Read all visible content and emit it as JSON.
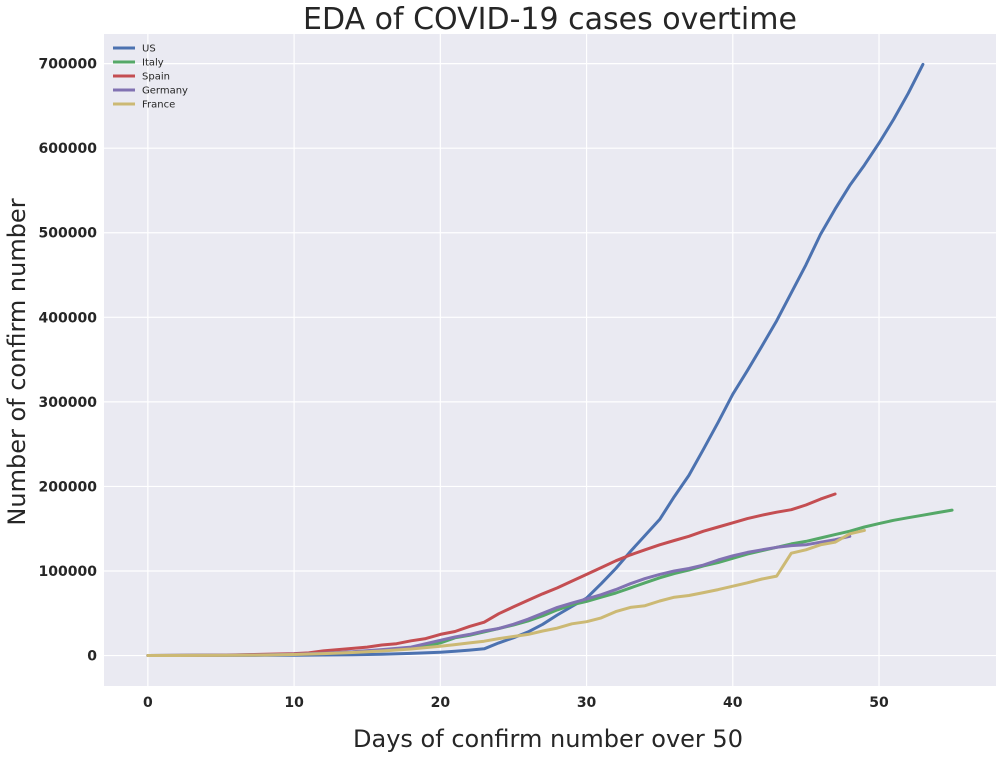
{
  "chart_data": {
    "type": "line",
    "title": "EDA of COVID-19 cases overtime",
    "xlabel": "Days of confirm number over 50",
    "ylabel": "Number of confirm number",
    "xlim": [
      -3,
      58
    ],
    "ylim": [
      -36000,
      735000
    ],
    "xticks": [
      0,
      10,
      20,
      30,
      40,
      50
    ],
    "yticks": [
      0,
      100000,
      200000,
      300000,
      400000,
      500000,
      600000,
      700000
    ],
    "grid": true,
    "legend_position": "top-left",
    "colors": {
      "plot_background": "#eaeaf2",
      "grid": "#ffffff",
      "text": "#262626"
    },
    "series": [
      {
        "name": "US",
        "color": "#4c72b0",
        "x": [
          0,
          2,
          4,
          6,
          8,
          10,
          12,
          14,
          16,
          18,
          20,
          21,
          22,
          23,
          24,
          25,
          26,
          27,
          28,
          29,
          30,
          31,
          32,
          33,
          34,
          35,
          36,
          37,
          38,
          39,
          40,
          41,
          42,
          43,
          44,
          45,
          46,
          47,
          48,
          49,
          50,
          51,
          52,
          53
        ],
        "values": [
          50,
          100,
          150,
          200,
          300,
          400,
          700,
          1000,
          1500,
          2500,
          4000,
          5000,
          6500,
          8000,
          15000,
          21000,
          28000,
          37000,
          48000,
          58000,
          68000,
          85000,
          103000,
          123000,
          142000,
          161000,
          188000,
          213000,
          244000,
          276000,
          309000,
          337000,
          366000,
          396000,
          429000,
          462000,
          498000,
          528000,
          556000,
          580000,
          606000,
          634000,
          665000,
          699000
        ]
      },
      {
        "name": "Italy",
        "color": "#55a868",
        "x": [
          0,
          2,
          4,
          6,
          8,
          10,
          12,
          14,
          16,
          18,
          19,
          20,
          21,
          22,
          23,
          24,
          25,
          26,
          27,
          28,
          29,
          30,
          31,
          32,
          33,
          34,
          35,
          36,
          37,
          38,
          39,
          40,
          41,
          42,
          43,
          44,
          45,
          46,
          47,
          48,
          49,
          50,
          51,
          52,
          53,
          54,
          55
        ],
        "values": [
          50,
          150,
          300,
          600,
          1000,
          1700,
          2500,
          4000,
          6000,
          9000,
          11000,
          15000,
          21000,
          24000,
          28000,
          32000,
          36000,
          41000,
          47000,
          54000,
          60000,
          64000,
          69000,
          74000,
          80000,
          86000,
          92000,
          97000,
          101000,
          106000,
          110000,
          115000,
          120000,
          124000,
          128000,
          132000,
          135000,
          139000,
          143000,
          147000,
          152000,
          156000,
          160000,
          163000,
          166000,
          169000,
          172000
        ]
      },
      {
        "name": "Spain",
        "color": "#c44e52",
        "x": [
          0,
          2,
          4,
          6,
          8,
          10,
          11,
          12,
          13,
          14,
          15,
          16,
          17,
          18,
          19,
          20,
          21,
          22,
          23,
          24,
          25,
          26,
          27,
          28,
          29,
          30,
          31,
          32,
          33,
          34,
          35,
          36,
          37,
          38,
          39,
          40,
          41,
          42,
          43,
          44,
          45,
          46,
          47
        ],
        "values": [
          50,
          150,
          300,
          800,
          1500,
          2300,
          3100,
          5500,
          7000,
          8500,
          10000,
          12500,
          14000,
          17500,
          20000,
          25000,
          28500,
          34500,
          39500,
          49500,
          57500,
          65500,
          73000,
          80000,
          88000,
          96000,
          104000,
          112000,
          119000,
          125000,
          131000,
          136000,
          141000,
          147000,
          152000,
          157000,
          162000,
          166000,
          169500,
          172500,
          178000,
          185000,
          191000
        ]
      },
      {
        "name": "Germany",
        "color": "#8172b2",
        "x": [
          0,
          2,
          4,
          6,
          8,
          10,
          12,
          14,
          16,
          18,
          20,
          21,
          22,
          23,
          24,
          25,
          26,
          27,
          28,
          29,
          30,
          31,
          32,
          33,
          34,
          35,
          36,
          37,
          38,
          39,
          40,
          41,
          42,
          43,
          44,
          45,
          46,
          47,
          48
        ],
        "values": [
          50,
          150,
          300,
          500,
          900,
          1500,
          2700,
          4500,
          7000,
          10000,
          18000,
          22000,
          25000,
          29000,
          32000,
          37000,
          43000,
          50000,
          57000,
          62000,
          67000,
          72000,
          78000,
          85000,
          91000,
          96000,
          100000,
          103000,
          107000,
          113000,
          118000,
          122000,
          125000,
          128000,
          130000,
          131000,
          134000,
          137000,
          141000
        ]
      },
      {
        "name": "France",
        "color": "#ccb974",
        "x": [
          0,
          2,
          4,
          6,
          8,
          10,
          12,
          14,
          16,
          18,
          20,
          21,
          22,
          23,
          24,
          25,
          26,
          27,
          28,
          29,
          30,
          31,
          32,
          33,
          34,
          35,
          36,
          37,
          38,
          39,
          40,
          41,
          42,
          43,
          44,
          45,
          46,
          47,
          48,
          49
        ],
        "values": [
          50,
          100,
          200,
          400,
          700,
          1200,
          2300,
          3600,
          5400,
          7700,
          11000,
          13000,
          15000,
          17000,
          20000,
          22500,
          25000,
          29000,
          32500,
          37500,
          40000,
          44500,
          52000,
          57000,
          59000,
          64500,
          69000,
          71000,
          74500,
          78000,
          82000,
          86000,
          90500,
          94000,
          121000,
          125000,
          131000,
          134000,
          144000,
          148000
        ]
      }
    ]
  }
}
